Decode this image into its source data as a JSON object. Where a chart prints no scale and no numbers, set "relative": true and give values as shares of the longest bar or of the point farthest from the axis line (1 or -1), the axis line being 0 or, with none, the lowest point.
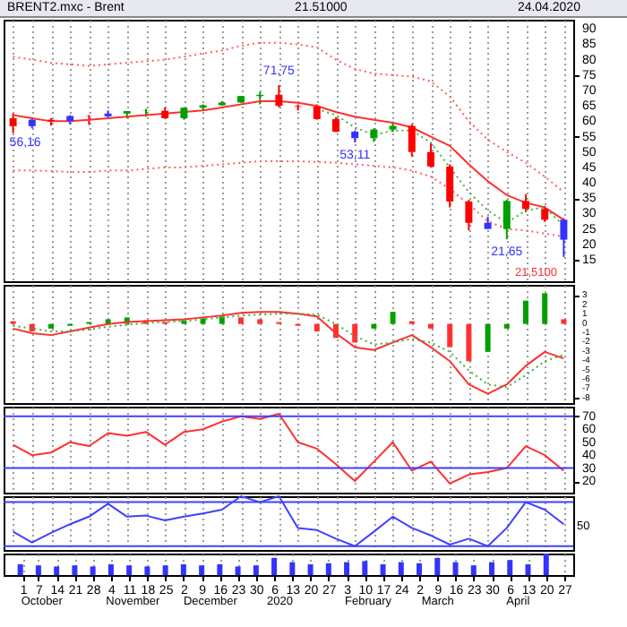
{
  "chart_data": [
    {
      "type": "candlestick",
      "title": "BRENT2.mxc - Brent",
      "subtitle": "21.51000",
      "annotations": [
        "24.04.2020",
        {
          "text": "56,16",
          "y": 56.16
        },
        {
          "text": "71,75",
          "y": 71.75
        },
        {
          "text": "53,11",
          "y": 53.11
        },
        {
          "text": "21,65",
          "y": 21.65
        },
        "21,5100"
      ],
      "categories": [
        null,
        null,
        null,
        null,
        null,
        null,
        null,
        null,
        null,
        null,
        null,
        null,
        null,
        null,
        null,
        null,
        null,
        null,
        null,
        null,
        null,
        null,
        null,
        null,
        null,
        null,
        null,
        null,
        null,
        null
      ],
      "ohlc": [
        [
          61,
          62.5,
          56.16,
          58.4
        ],
        [
          58.4,
          60.8,
          57.7,
          60.5
        ],
        [
          60.5,
          61,
          58.6,
          60
        ],
        [
          60,
          62,
          59,
          61.7
        ],
        [
          61.7,
          62,
          58.8,
          61.6
        ],
        [
          61.6,
          63.5,
          61,
          62.5
        ],
        [
          62.5,
          63.3,
          61,
          63.3
        ],
        [
          63.3,
          64,
          61.5,
          63.4
        ],
        [
          63.4,
          64.5,
          60.8,
          61
        ],
        [
          61,
          64.5,
          60.5,
          64.4
        ],
        [
          64.4,
          65.5,
          63.5,
          65.2
        ],
        [
          65.2,
          66.5,
          65,
          66.1
        ],
        [
          66.1,
          68.2,
          66,
          68.2
        ],
        [
          68.2,
          69.5,
          65.5,
          68.6
        ],
        [
          68.6,
          71.75,
          64.5,
          65
        ],
        [
          65,
          65.5,
          63.5,
          64.8
        ],
        [
          64.8,
          65.5,
          60.5,
          60.7
        ],
        [
          60.7,
          61.3,
          56.5,
          56.6
        ],
        [
          56.6,
          57,
          53.11,
          54.5
        ],
        [
          54.5,
          57.7,
          53.3,
          57.3
        ],
        [
          57.3,
          59.9,
          56.5,
          58.5
        ],
        [
          58.5,
          59.1,
          48.5,
          50
        ],
        [
          50,
          53,
          45,
          45.3
        ],
        [
          45.3,
          46,
          32,
          33.9
        ],
        [
          33.9,
          34.5,
          24.5,
          27
        ],
        [
          27,
          29,
          25,
          25
        ],
        [
          25,
          34.5,
          21.65,
          34.1
        ],
        [
          34.1,
          36.3,
          30.5,
          31.5
        ],
        [
          31.5,
          32.5,
          27.3,
          28
        ],
        [
          28,
          28.5,
          15.9,
          21.5
        ]
      ],
      "colors": [
        "#ff0000",
        "#3333ff",
        "#ff0000",
        "#3333ff",
        "#ff0000",
        "#3333ff",
        "#00a000",
        "#00a000",
        "#ff0000",
        "#00a000",
        "#00a000",
        "#00a000",
        "#00a000",
        "#00a000",
        "#ff0000",
        "#ff0000",
        "#ff0000",
        "#ff0000",
        "#3333ff",
        "#00a000",
        "#00a000",
        "#ff0000",
        "#ff0000",
        "#ff0000",
        "#ff0000",
        "#3333ff",
        "#00a000",
        "#ff0000",
        "#ff0000",
        "#3333ff"
      ],
      "series": [
        {
          "type": "line",
          "color": "#ff6060",
          "line_style": "dotted",
          "values": [
            81,
            80,
            79,
            78.5,
            78,
            78.5,
            79,
            79.5,
            80,
            81,
            82,
            83,
            84.5,
            85.5,
            85.5,
            85,
            84,
            80,
            77,
            75.5,
            75,
            74.5,
            73,
            68,
            60,
            54,
            50,
            46.5,
            42,
            37
          ]
        },
        {
          "type": "line",
          "color": "#ff6060",
          "line_style": "dotted",
          "values": [
            44,
            44,
            43.8,
            43.5,
            43.5,
            44,
            44,
            44.5,
            45,
            45,
            45.5,
            46,
            46.5,
            47,
            47,
            47,
            46.8,
            46.5,
            46,
            45.5,
            45,
            44,
            42,
            38,
            33,
            27.5,
            25,
            24.5,
            23.5,
            22.5
          ]
        },
        {
          "type": "line",
          "color": "#ff3030",
          "line_style": "solid",
          "values": [
            62,
            61,
            60,
            60,
            60.5,
            61,
            61.5,
            62,
            62.5,
            63,
            63.5,
            64.5,
            65.5,
            66.5,
            66.5,
            66,
            65,
            63,
            61.5,
            60.5,
            59.5,
            58,
            55,
            52,
            46,
            40.5,
            36,
            33.5,
            32,
            28
          ]
        },
        {
          "type": "line",
          "color": "#40b040",
          "line_style": "dotted",
          "values": [
            null,
            null,
            null,
            null,
            null,
            null,
            null,
            null,
            null,
            null,
            null,
            null,
            null,
            null,
            null,
            null,
            64,
            62,
            58,
            55.5,
            57,
            57,
            53,
            45,
            37,
            31,
            27,
            31,
            32,
            26
          ]
        }
      ],
      "ylim": [
        8,
        93
      ],
      "yticks": [
        15,
        20,
        25,
        30,
        35,
        40,
        45,
        50,
        55,
        60,
        65,
        70,
        75,
        80,
        85,
        90
      ],
      "grid": "x",
      "tick_labels": "y"
    },
    {
      "type": "bar",
      "categories": [
        null,
        null,
        null,
        null,
        null,
        null,
        null,
        null,
        null,
        null,
        null,
        null,
        null,
        null,
        null,
        null,
        null,
        null,
        null,
        null,
        null,
        null,
        null,
        null,
        null,
        null,
        null,
        null,
        null,
        null
      ],
      "series": [
        {
          "type": "bar",
          "values": [
            0.3,
            -0.8,
            -0.5,
            -0.2,
            0.2,
            0.5,
            0.7,
            0.4,
            0.2,
            0.4,
            0.6,
            0.8,
            0.7,
            0.5,
            0.2,
            -0.2,
            -0.8,
            -1.5,
            -2,
            -0.5,
            1.3,
            0.3,
            -0.5,
            -2.5,
            -4,
            -3,
            -0.5,
            2.5,
            3.3,
            0.5
          ],
          "colors": [
            "#ff3030",
            "#ff3030",
            "#00a000",
            "#00a000",
            "#00a000",
            "#00a000",
            "#00a000",
            "#ff3030",
            "#ff3030",
            "#00a000",
            "#00a000",
            "#00a000",
            "#ff3030",
            "#ff3030",
            "#ff3030",
            "#ff3030",
            "#ff3030",
            "#ff3030",
            "#ff3030",
            "#00a000",
            "#00a000",
            "#ff3030",
            "#ff3030",
            "#ff3030",
            "#ff3030",
            "#00a000",
            "#00a000",
            "#00a000",
            "#00a000",
            "#ff3030"
          ]
        },
        {
          "type": "line",
          "color": "#ff3030",
          "line_style": "solid",
          "values": [
            -0.5,
            -1,
            -1.2,
            -0.8,
            -0.4,
            0,
            0.2,
            0.3,
            0.4,
            0.5,
            0.7,
            0.9,
            1.2,
            1.3,
            1.3,
            1.1,
            0.8,
            -1,
            -2.5,
            -2.8,
            -2,
            -1.2,
            -2.5,
            -4,
            -6.5,
            -7.5,
            -6.5,
            -4.5,
            -3,
            -3.7
          ]
        },
        {
          "type": "line",
          "color": "#40b040",
          "line_style": "dotted",
          "values": [
            -0.2,
            -0.5,
            -0.8,
            -0.8,
            -0.6,
            -0.3,
            -0.1,
            0.1,
            0.2,
            0.3,
            0.5,
            0.7,
            0.9,
            1,
            1.1,
            1.1,
            1,
            0,
            -1.3,
            -2.2,
            -2,
            -1.6,
            -2,
            -3,
            -5,
            -6.5,
            -6.8,
            -5.5,
            -4,
            -3.3
          ]
        }
      ],
      "ylim": [
        -8.5,
        4.2
      ],
      "yticks": [
        3,
        2,
        1,
        0,
        -1,
        -2,
        -3,
        -4,
        -5,
        -6,
        -7,
        -8
      ],
      "grid": "x",
      "tick_labels": "y"
    },
    {
      "type": "line",
      "categories": [
        null,
        null,
        null,
        null,
        null,
        null,
        null,
        null,
        null,
        null,
        null,
        null,
        null,
        null,
        null,
        null,
        null,
        null,
        null,
        null,
        null,
        null,
        null,
        null,
        null,
        null,
        null,
        null,
        null,
        null
      ],
      "series": [
        {
          "color": "#ff3030",
          "values": [
            48,
            40,
            42,
            50,
            47,
            57,
            55,
            58,
            48,
            58,
            60,
            66,
            70,
            68,
            72,
            50,
            45,
            33,
            20,
            35,
            50,
            28,
            35,
            18,
            25,
            27,
            30,
            47,
            40,
            28
          ]
        }
      ],
      "ref_lines": [
        {
          "axis": "y",
          "value": 70,
          "color": "#4040ff"
        },
        {
          "axis": "y",
          "value": 30,
          "color": "#4040ff"
        }
      ],
      "ylim": [
        11,
        77.5
      ],
      "yticks": [
        20,
        30,
        40,
        50,
        60,
        70
      ],
      "grid": "x",
      "tick_labels": "y"
    },
    {
      "type": "line",
      "categories": [
        null,
        null,
        null,
        null,
        null,
        null,
        null,
        null,
        null,
        null,
        null,
        null,
        null,
        null,
        null,
        null,
        null,
        null,
        null,
        null,
        null,
        null,
        null,
        null,
        null,
        null,
        null,
        null,
        null,
        null
      ],
      "relative": true,
      "annotations": [
        "50"
      ],
      "series": [
        {
          "color": "#4040ff",
          "values": [
            0.34,
            0.14,
            0.32,
            0.48,
            0.62,
            0.86,
            0.62,
            0.64,
            0.55,
            0.62,
            0.68,
            0.75,
            1,
            0.89,
            1,
            0.41,
            0.37,
            0.21,
            0.07,
            0.34,
            0.62,
            0.41,
            0.27,
            0.1,
            0.21,
            0.07,
            0.41,
            0.89,
            0.75,
            0.48
          ]
        }
      ],
      "ref_lines": [
        {
          "axis": "y",
          "value": 0.89,
          "color": "#4040ff"
        },
        {
          "axis": "y",
          "value": 0.07,
          "color": "#4040ff"
        }
      ],
      "grid": "x",
      "tick_labels": "y"
    },
    {
      "type": "bar",
      "relative": true,
      "x": [
        "2019-09-30",
        "2019-10-07",
        "2019-10-14",
        "2019-10-21",
        "2019-10-28",
        "2019-11-04",
        "2019-11-11",
        "2019-11-18",
        "2019-11-25",
        "2019-12-02",
        "2019-12-09",
        "2019-12-16",
        "2019-12-23",
        "2019-12-30",
        "2020-01-06",
        "2020-01-13",
        "2020-01-20",
        "2020-01-27",
        "2020-02-03",
        "2020-02-10",
        "2020-02-17",
        "2020-02-24",
        "2020-03-02",
        "2020-03-09",
        "2020-03-16",
        "2020-03-23",
        "2020-03-30",
        "2020-04-06",
        "2020-04-13",
        "2020-04-20"
      ],
      "values": [
        0.5,
        0.45,
        0.4,
        0.45,
        0.4,
        0.5,
        0.45,
        0.4,
        0.45,
        0.5,
        0.45,
        0.5,
        0.4,
        0.45,
        0.8,
        0.6,
        0.5,
        0.55,
        0.6,
        0.65,
        0.5,
        0.6,
        0.55,
        0.8,
        0.6,
        0.45,
        0.6,
        0.7,
        0.5,
        1
      ],
      "color": "#3333ff",
      "xlim": [
        "2019-09-27",
        "2020-04-27"
      ],
      "xticks": [
        {
          "value": "2019-10-01",
          "label": "1"
        },
        {
          "value": "2019-10-07",
          "label": "7"
        },
        {
          "value": "2019-10-14",
          "label": "14"
        },
        {
          "value": "2019-10-21",
          "label": "21"
        },
        {
          "value": "2019-10-28",
          "label": "28"
        },
        {
          "value": "2019-11-04",
          "label": "4"
        },
        {
          "value": "2019-11-11",
          "label": "11"
        },
        {
          "value": "2019-11-18",
          "label": "18"
        },
        {
          "value": "2019-11-25",
          "label": "25"
        },
        {
          "value": "2019-12-02",
          "label": "2"
        },
        {
          "value": "2019-12-09",
          "label": "9"
        },
        {
          "value": "2019-12-16",
          "label": "16"
        },
        {
          "value": "2019-12-23",
          "label": "23"
        },
        {
          "value": "2019-12-30",
          "label": "30"
        },
        {
          "value": "2020-01-06",
          "label": "6"
        },
        {
          "value": "2020-01-13",
          "label": "13"
        },
        {
          "value": "2020-01-20",
          "label": "20"
        },
        {
          "value": "2020-01-27",
          "label": "27"
        },
        {
          "value": "2020-02-03",
          "label": "3"
        },
        {
          "value": "2020-02-10",
          "label": "10"
        },
        {
          "value": "2020-02-17",
          "label": "17"
        },
        {
          "value": "2020-02-24",
          "label": "24"
        },
        {
          "value": "2020-03-02",
          "label": "2"
        },
        {
          "value": "2020-03-09",
          "label": "9"
        },
        {
          "value": "2020-03-16",
          "label": "16"
        },
        {
          "value": "2020-03-23",
          "label": "23"
        },
        {
          "value": "2020-03-30",
          "label": "30"
        },
        {
          "value": "2020-04-06",
          "label": "6"
        },
        {
          "value": "2020-04-13",
          "label": "13"
        },
        {
          "value": "2020-04-20",
          "label": "20"
        },
        {
          "value": "2020-04-27",
          "label": "27"
        }
      ],
      "x2lim": [
        "2019-09-27",
        "2020-04-27"
      ],
      "x2ticks": [
        {
          "value": "2019-10-11",
          "label": "October"
        },
        {
          "value": "2019-11-14",
          "label": "November"
        },
        {
          "value": "2019-12-13",
          "label": "December"
        },
        {
          "value": "2020-01-08",
          "label": "2020"
        },
        {
          "value": "2020-02-10",
          "label": "February"
        },
        {
          "value": "2020-03-07",
          "label": "March"
        },
        {
          "value": "2020-04-06",
          "label": "April"
        }
      ],
      "grid": "x",
      "tick_labels": "x"
    }
  ]
}
